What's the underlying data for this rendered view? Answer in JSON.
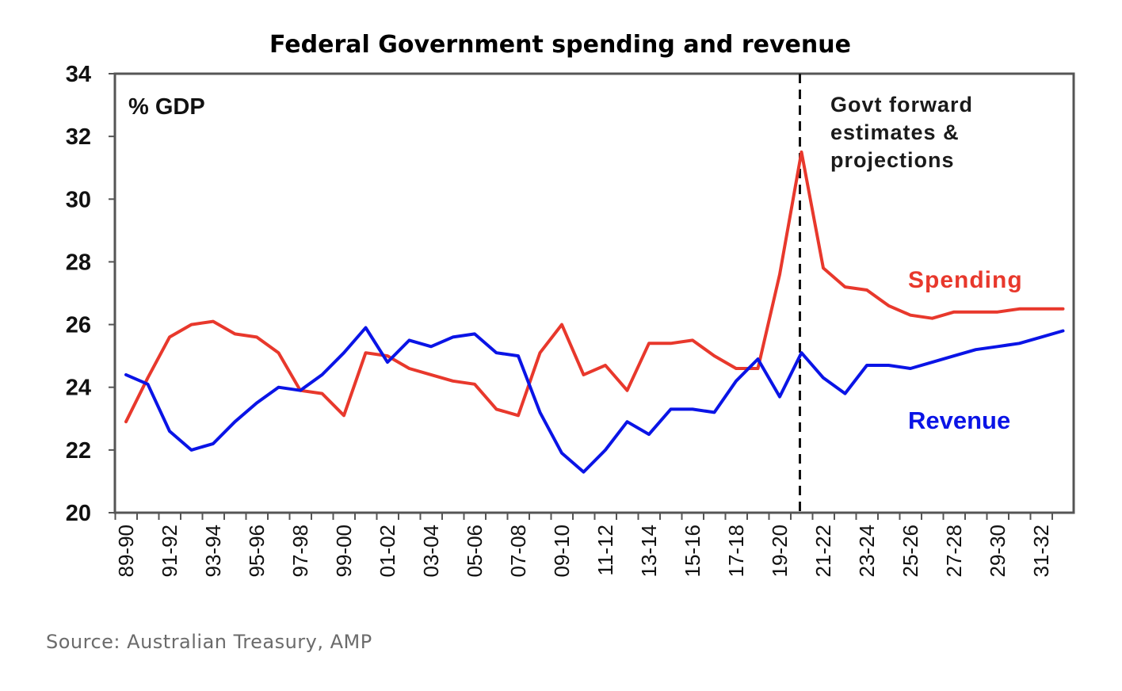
{
  "chart_data": {
    "type": "line",
    "title": "Federal Government spending and revenue",
    "unit_label": "% GDP",
    "xlabel": "",
    "ylabel": "% GDP",
    "ylim": [
      20,
      34
    ],
    "yticks": [
      20,
      22,
      24,
      26,
      28,
      30,
      32,
      34
    ],
    "grid": false,
    "categories": [
      "89-90",
      "90-91",
      "91-92",
      "92-93",
      "93-94",
      "94-95",
      "95-96",
      "96-97",
      "97-98",
      "98-99",
      "99-00",
      "00-01",
      "01-02",
      "02-03",
      "03-04",
      "04-05",
      "05-06",
      "06-07",
      "07-08",
      "08-09",
      "09-10",
      "10-11",
      "11-12",
      "12-13",
      "13-14",
      "14-15",
      "15-16",
      "16-17",
      "17-18",
      "18-19",
      "19-20",
      "20-21",
      "21-22",
      "22-23",
      "23-24",
      "24-25",
      "25-26",
      "26-27",
      "27-28",
      "28-29",
      "29-30",
      "30-31",
      "31-32",
      "32-33"
    ],
    "xtick_labels": [
      "89-90",
      "91-92",
      "93-94",
      "95-96",
      "97-98",
      "99-00",
      "01-02",
      "03-04",
      "05-06",
      "07-08",
      "09-10",
      "11-12",
      "13-14",
      "15-16",
      "17-18",
      "19-20",
      "21-22",
      "23-24",
      "25-26",
      "27-28",
      "29-30",
      "31-32"
    ],
    "series": [
      {
        "name": "Spending",
        "color": "#e8382c",
        "values": [
          22.9,
          24.3,
          25.6,
          26.0,
          26.1,
          25.7,
          25.6,
          25.1,
          23.9,
          23.8,
          23.1,
          25.1,
          25.0,
          24.6,
          24.4,
          24.2,
          24.1,
          23.3,
          23.1,
          25.1,
          26.0,
          24.4,
          24.7,
          23.9,
          25.4,
          25.4,
          25.5,
          25.0,
          24.6,
          24.6,
          27.6,
          31.5,
          27.8,
          27.2,
          27.1,
          26.6,
          26.3,
          26.2,
          26.4,
          26.4,
          26.4,
          26.5,
          26.5,
          26.5
        ]
      },
      {
        "name": "Revenue",
        "color": "#0a14e6",
        "values": [
          24.4,
          24.1,
          22.6,
          22.0,
          22.2,
          22.9,
          23.5,
          24.0,
          23.9,
          24.4,
          25.1,
          25.9,
          24.8,
          25.5,
          25.3,
          25.6,
          25.7,
          25.1,
          25.0,
          23.2,
          21.9,
          21.3,
          22.0,
          22.9,
          22.5,
          23.3,
          23.3,
          23.2,
          24.2,
          24.9,
          23.7,
          25.1,
          24.3,
          23.8,
          24.7,
          24.7,
          24.6,
          24.8,
          25.0,
          25.2,
          25.3,
          25.4,
          25.6,
          25.8
        ]
      }
    ],
    "divider": {
      "at_category": "20-21",
      "style": "dashed"
    },
    "annotations": {
      "forecast_lines": [
        "Govt forward",
        "estimates &",
        "projections"
      ],
      "spending_label": "Spending",
      "revenue_label": "Revenue"
    },
    "legend": "inline-right"
  },
  "source": "Source: Australian Treasury, AMP"
}
